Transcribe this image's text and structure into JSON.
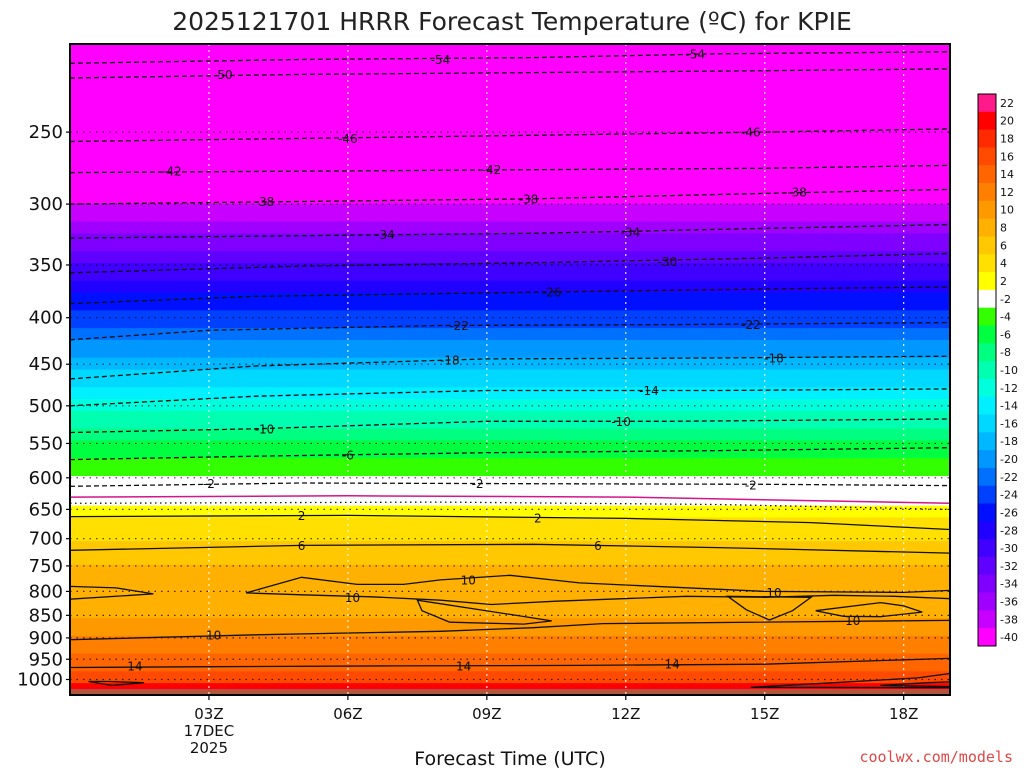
{
  "chart_data": {
    "type": "heatmap",
    "title": "2025121701 HRRR Forecast Temperature (ºC) for KPIE",
    "xlabel": "Forecast Time (UTC)",
    "ylabel": "",
    "credit": "coolwx.com/models",
    "x_range_hours": [
      0,
      19
    ],
    "x_ticks": [
      {
        "hour": 3,
        "label": "03Z",
        "sub": [
          "17DEC",
          "2025"
        ]
      },
      {
        "hour": 6,
        "label": "06Z",
        "sub": []
      },
      {
        "hour": 9,
        "label": "09Z",
        "sub": []
      },
      {
        "hour": 12,
        "label": "12Z",
        "sub": []
      },
      {
        "hour": 15,
        "label": "15Z",
        "sub": []
      },
      {
        "hour": 18,
        "label": "18Z",
        "sub": []
      }
    ],
    "y_axis": {
      "scale": "log",
      "direction": "reversed",
      "range_hpa": [
        1040,
        200
      ]
    },
    "y_ticks": [
      250,
      300,
      350,
      400,
      450,
      500,
      550,
      600,
      650,
      700,
      750,
      800,
      850,
      900,
      950,
      1000
    ],
    "grid": true,
    "colorbar": {
      "levels": [
        22,
        20,
        18,
        16,
        14,
        12,
        10,
        8,
        6,
        4,
        2,
        -2,
        -4,
        -6,
        -8,
        -10,
        -12,
        -14,
        -16,
        -18,
        -20,
        -22,
        -24,
        -26,
        -28,
        -30,
        -32,
        -34,
        -36,
        -38,
        -40
      ],
      "colors": [
        "#ff1a8c",
        "#ff0000",
        "#ff2a00",
        "#ff4a00",
        "#ff6600",
        "#ff8000",
        "#ff9900",
        "#ffb000",
        "#ffc800",
        "#ffe000",
        "#ffff00",
        "#ffffff",
        "#33ff00",
        "#00ff40",
        "#00ff80",
        "#00ffb0",
        "#00ffdd",
        "#00f0ff",
        "#00d8ff",
        "#00b8ff",
        "#0098ff",
        "#0070ff",
        "#0040ff",
        "#0010ff",
        "#2000ff",
        "#4000ff",
        "#6000ff",
        "#8000ff",
        "#a000ff",
        "#c800ff",
        "#ff00ff"
      ]
    },
    "temperature_profile": [
      {
        "p": 1040,
        "t": 26
      },
      {
        "p": 1025,
        "t": 22
      },
      {
        "p": 1000,
        "t": 17
      },
      {
        "p": 950,
        "t": 15
      },
      {
        "p": 900,
        "t": 12
      },
      {
        "p": 850,
        "t": 10
      },
      {
        "p": 800,
        "t": 9.5
      },
      {
        "p": 750,
        "t": 8
      },
      {
        "p": 700,
        "t": 6
      },
      {
        "p": 650,
        "t": 3
      },
      {
        "p": 630,
        "t": 0
      },
      {
        "p": 605,
        "t": -1
      },
      {
        "p": 550,
        "t": -6
      },
      {
        "p": 500,
        "t": -11
      },
      {
        "p": 450,
        "t": -17
      },
      {
        "p": 400,
        "t": -23
      },
      {
        "p": 350,
        "t": -30
      },
      {
        "p": 300,
        "t": -38
      },
      {
        "p": 250,
        "t": -46
      },
      {
        "p": 200,
        "t": -56
      }
    ],
    "contours": [
      {
        "level": "-54",
        "style": "dashed",
        "points": [
          [
            0,
            210
          ],
          [
            5,
            208
          ],
          [
            10,
            207
          ],
          [
            14,
            205
          ],
          [
            19,
            204
          ]
        ],
        "labels": [
          [
            8,
            208
          ],
          [
            13.5,
            205
          ]
        ]
      },
      {
        "level": "-50",
        "style": "dashed",
        "points": [
          [
            0,
            218
          ],
          [
            5,
            216
          ],
          [
            10,
            215
          ],
          [
            15,
            214
          ],
          [
            19,
            213
          ]
        ],
        "labels": [
          [
            3.3,
            216
          ]
        ]
      },
      {
        "level": "-46",
        "style": "dashed",
        "points": [
          [
            0,
            256
          ],
          [
            5,
            254
          ],
          [
            10,
            252
          ],
          [
            15,
            250
          ],
          [
            19,
            248
          ]
        ],
        "labels": [
          [
            6,
            254
          ],
          [
            14.7,
            250
          ]
        ]
      },
      {
        "level": "-42",
        "style": "dashed",
        "points": [
          [
            0,
            277
          ],
          [
            5,
            276
          ],
          [
            10,
            275
          ],
          [
            15,
            274
          ],
          [
            19,
            272
          ]
        ],
        "labels": [
          [
            2.2,
            276
          ],
          [
            9.1,
            275
          ]
        ]
      },
      {
        "level": "-38",
        "style": "dashed",
        "points": [
          [
            0,
            300
          ],
          [
            5,
            298
          ],
          [
            10,
            296
          ],
          [
            15,
            292
          ],
          [
            19,
            289
          ]
        ],
        "labels": [
          [
            4.2,
            298
          ],
          [
            9.9,
            296
          ],
          [
            15.7,
            291
          ]
        ]
      },
      {
        "level": "-34",
        "style": "dashed",
        "points": [
          [
            0,
            327
          ],
          [
            5,
            325
          ],
          [
            10,
            323
          ],
          [
            15,
            319
          ],
          [
            19,
            316
          ]
        ],
        "labels": [
          [
            6.8,
            324
          ],
          [
            12.1,
            322
          ]
        ]
      },
      {
        "level": "-30",
        "style": "dashed",
        "points": [
          [
            0,
            357
          ],
          [
            5,
            351
          ],
          [
            10,
            348
          ],
          [
            15,
            344
          ],
          [
            19,
            340
          ]
        ],
        "labels": [
          [
            12.9,
            347
          ]
        ]
      },
      {
        "level": "-26",
        "style": "dashed",
        "points": [
          [
            0,
            386
          ],
          [
            4,
            379
          ],
          [
            10,
            375
          ],
          [
            15,
            372
          ],
          [
            19,
            370
          ]
        ],
        "labels": [
          [
            10.4,
            375
          ]
        ]
      },
      {
        "level": "-22",
        "style": "dashed",
        "points": [
          [
            0,
            423
          ],
          [
            3,
            413
          ],
          [
            8,
            408
          ],
          [
            13,
            407
          ],
          [
            19,
            405
          ]
        ],
        "labels": [
          [
            8.4,
            408
          ],
          [
            14.7,
            407
          ]
        ]
      },
      {
        "level": "-18",
        "style": "dashed",
        "points": [
          [
            0,
            467
          ],
          [
            4,
            452
          ],
          [
            9,
            444
          ],
          [
            14,
            443
          ],
          [
            19,
            441
          ]
        ],
        "labels": [
          [
            8.2,
            445
          ],
          [
            15.2,
            443
          ]
        ]
      },
      {
        "level": "-14",
        "style": "dashed",
        "points": [
          [
            0,
            500
          ],
          [
            4,
            488
          ],
          [
            9,
            481
          ],
          [
            14,
            481
          ],
          [
            19,
            479
          ]
        ],
        "labels": [
          [
            12.5,
            481
          ]
        ]
      },
      {
        "level": "-10",
        "style": "dashed",
        "points": [
          [
            0,
            535
          ],
          [
            4,
            530
          ],
          [
            9,
            520
          ],
          [
            13,
            520
          ],
          [
            19,
            517
          ]
        ],
        "labels": [
          [
            4.2,
            530
          ],
          [
            11.9,
            520
          ]
        ]
      },
      {
        "level": "-6",
        "style": "dashed",
        "points": [
          [
            0,
            573
          ],
          [
            4,
            568
          ],
          [
            9,
            563
          ],
          [
            14,
            560
          ],
          [
            19,
            556
          ]
        ],
        "labels": [
          [
            6,
            566
          ]
        ]
      },
      {
        "level": "-2",
        "style": "dashed",
        "points": [
          [
            0,
            613
          ],
          [
            5,
            608
          ],
          [
            10,
            609
          ],
          [
            15,
            610
          ],
          [
            19,
            612
          ]
        ],
        "labels": [
          [
            3,
            609
          ],
          [
            8.8,
            609
          ],
          [
            14.7,
            611
          ]
        ]
      },
      {
        "level": "0",
        "style": "magenta",
        "points": [
          [
            0,
            630
          ],
          [
            6,
            628
          ],
          [
            12,
            630
          ],
          [
            19,
            640
          ]
        ],
        "labels": []
      },
      {
        "level": "2",
        "style": "dotted",
        "points": [
          [
            0,
            640
          ],
          [
            8,
            638
          ],
          [
            14,
            642
          ],
          [
            19,
            650
          ]
        ],
        "labels": []
      },
      {
        "level": "2",
        "style": "solid",
        "points": [
          [
            0,
            662
          ],
          [
            6,
            660
          ],
          [
            12,
            665
          ],
          [
            16,
            672
          ],
          [
            19,
            684
          ]
        ],
        "labels": [
          [
            5,
            660
          ],
          [
            10.1,
            664
          ]
        ]
      },
      {
        "level": "6",
        "style": "solid",
        "points": [
          [
            0,
            721
          ],
          [
            5,
            712
          ],
          [
            10,
            710
          ],
          [
            14,
            716
          ],
          [
            19,
            726
          ]
        ],
        "labels": [
          [
            5,
            712
          ],
          [
            11.4,
            712
          ]
        ]
      },
      {
        "level": "10",
        "style": "solid",
        "points": [
          [
            0,
            904
          ],
          [
            4,
            893
          ],
          [
            8,
            885
          ],
          [
            10,
            877
          ],
          [
            11.5,
            868
          ],
          [
            19,
            861
          ]
        ],
        "labels": [
          [
            3.1,
            893
          ]
        ]
      },
      {
        "level": "14",
        "style": "solid",
        "points": [
          [
            0,
            970
          ],
          [
            3,
            968
          ],
          [
            7,
            966
          ],
          [
            11,
            965
          ],
          [
            15,
            962
          ],
          [
            19,
            948
          ]
        ],
        "labels": [
          [
            1.4,
            966
          ],
          [
            8.5,
            966
          ],
          [
            13,
            962
          ]
        ]
      }
    ],
    "closed_contours": [
      {
        "level": "10",
        "points": [
          [
            0,
            790
          ],
          [
            1,
            793
          ],
          [
            1.8,
            805
          ],
          [
            0,
            816
          ]
        ],
        "labels": []
      },
      {
        "level": "10",
        "points": [
          [
            3.8,
            803
          ],
          [
            5.0,
            772
          ],
          [
            6.2,
            786
          ],
          [
            7.2,
            786
          ],
          [
            8.0,
            777
          ],
          [
            9.5,
            768
          ],
          [
            11.0,
            783
          ],
          [
            15.0,
            800
          ],
          [
            18.0,
            802
          ],
          [
            19,
            798
          ],
          [
            19,
            815
          ],
          [
            17.8,
            810
          ],
          [
            16.5,
            808
          ],
          [
            15.0,
            812
          ],
          [
            13.3,
            810
          ],
          [
            10.5,
            820
          ],
          [
            9.1,
            827
          ],
          [
            8.0,
            818
          ],
          [
            6.5,
            811
          ],
          [
            5.0,
            807
          ]
        ],
        "labels": [
          [
            6.1,
            812
          ],
          [
            8.6,
            777
          ],
          [
            15.2,
            802
          ]
        ]
      },
      {
        "level": "10",
        "points": [
          [
            7.5,
            818
          ],
          [
            9.5,
            848
          ],
          [
            10.4,
            862
          ],
          [
            9.8,
            869
          ],
          [
            8.2,
            865
          ],
          [
            7.6,
            840
          ]
        ],
        "labels": []
      },
      {
        "level": "10",
        "points": [
          [
            14.2,
            810
          ],
          [
            14.6,
            838
          ],
          [
            15.1,
            860
          ],
          [
            15.6,
            840
          ],
          [
            16.0,
            812
          ]
        ],
        "labels": []
      },
      {
        "level": "10",
        "points": [
          [
            16.1,
            840
          ],
          [
            17.5,
            823
          ],
          [
            18.0,
            830
          ],
          [
            18.4,
            843
          ],
          [
            17.5,
            853
          ],
          [
            16.7,
            852
          ]
        ],
        "labels": [
          [
            16.9,
            861
          ]
        ]
      },
      {
        "level": "22",
        "points": [
          [
            0.4,
            1005
          ],
          [
            0.8,
            1005
          ],
          [
            1.6,
            1008
          ],
          [
            0.9,
            1015
          ]
        ],
        "labels": []
      },
      {
        "level": "18",
        "points": [
          [
            14.7,
            1020
          ],
          [
            16.5,
            1008
          ],
          [
            18.3,
            996
          ],
          [
            19,
            985
          ],
          [
            19,
            1021
          ]
        ],
        "labels": []
      },
      {
        "level": "22",
        "points": [
          [
            17.5,
            1015
          ],
          [
            18.5,
            1008
          ],
          [
            19,
            1006
          ],
          [
            19,
            1018
          ]
        ],
        "labels": []
      }
    ]
  }
}
